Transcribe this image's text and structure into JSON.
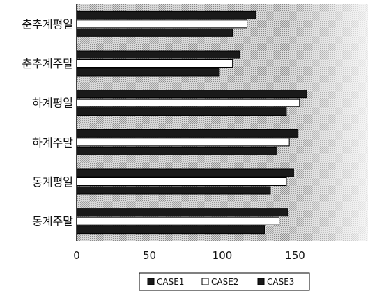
{
  "chart_data": {
    "type": "bar",
    "orientation": "horizontal",
    "categories": [
      "춘추계평일",
      "춘추계주말",
      "하계평일",
      "하계주말",
      "동계평일",
      "동계주말"
    ],
    "series": [
      {
        "name": "CASE1",
        "values": [
          123,
          112,
          158,
          152,
          149,
          145
        ]
      },
      {
        "name": "CASE2",
        "values": [
          117,
          107,
          153,
          146,
          144,
          139
        ]
      },
      {
        "name": "CASE3",
        "values": [
          107,
          98,
          144,
          137,
          133,
          129
        ]
      }
    ],
    "xlim": [
      0,
      200
    ],
    "x_ticks": [
      0,
      50,
      100,
      150
    ],
    "legend_position": "bottom",
    "grid": false,
    "colors": {
      "CASE1": "#1a1a1a",
      "CASE2": "#ffffff",
      "CASE3": "#1a1a1a",
      "plot_background": "#c8c8c8",
      "axis": "#000000"
    }
  }
}
